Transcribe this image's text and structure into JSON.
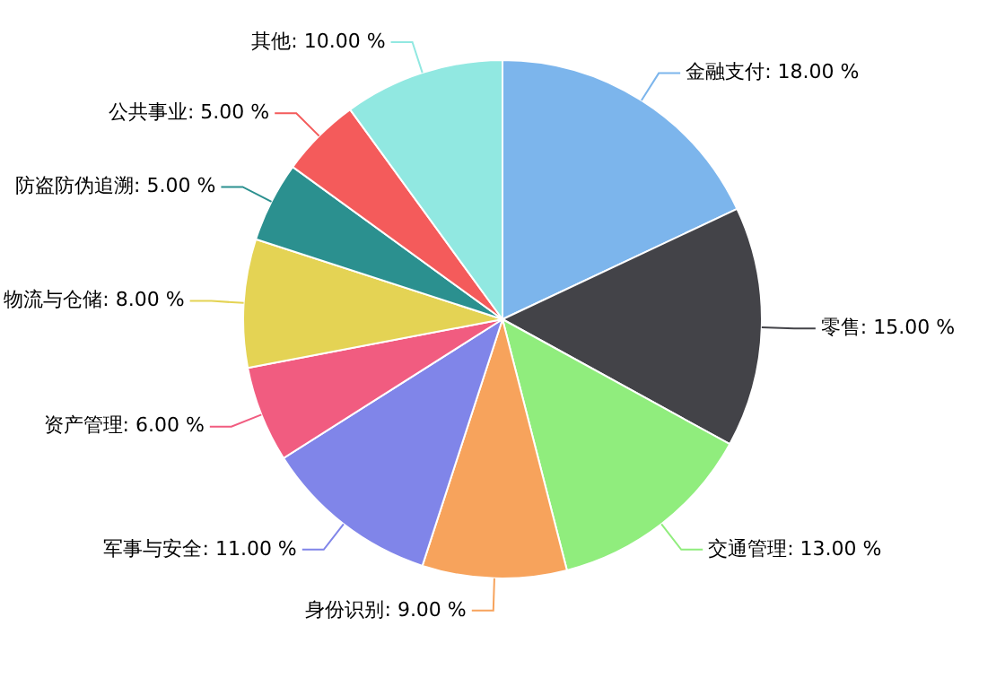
{
  "chart_data": {
    "type": "pie",
    "categories": [
      "金融支付",
      "零售",
      "交通管理",
      "身份识别",
      "军事与安全",
      "资产管理",
      "物流与仓储",
      "防盗防伪追溯",
      "公共事业",
      "其他"
    ],
    "values": [
      18,
      15,
      13,
      9,
      11,
      6,
      8,
      5,
      5,
      10
    ],
    "value_labels": [
      "18.00 %",
      "15.00 %",
      "13.00 %",
      "9.00 %",
      "11.00 %",
      "6.00 %",
      "8.00 %",
      "5.00 %",
      "5.00 %",
      "10.00 %"
    ],
    "colors": [
      "#7cb5ec",
      "#434348",
      "#90ed7d",
      "#f7a35c",
      "#8085e9",
      "#f15c80",
      "#e4d354",
      "#2b908f",
      "#f45b5b",
      "#91e8e1"
    ],
    "legend": false
  }
}
